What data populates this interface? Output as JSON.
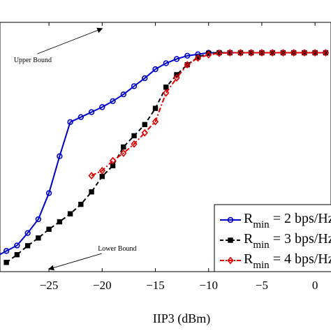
{
  "chart_data": {
    "type": "line",
    "xlabel": "IIP3 (dBm)",
    "ylabel": "",
    "xlim": [
      -29.6,
      1.5
    ],
    "ylim": [
      0,
      1
    ],
    "x_ticks": [
      {
        "value": -25,
        "label": "−25"
      },
      {
        "value": -20,
        "label": "−20"
      },
      {
        "value": -15,
        "label": "−15"
      },
      {
        "value": -10,
        "label": "−10"
      },
      {
        "value": -5,
        "label": "−5"
      },
      {
        "value": 0,
        "label": "0"
      }
    ],
    "grid": false,
    "legend_position": "bottom-right",
    "series": [
      {
        "name": "R_min = 2 bps/Hz",
        "legend_main": "R",
        "legend_sub": "min",
        "legend_rest": " = 2 bps/Hz",
        "color": "#0000cc",
        "line_style": "solid",
        "marker": "circle",
        "x": [
          -30,
          -29,
          -28,
          -27,
          -26,
          -25,
          -24,
          -23,
          -22,
          -21,
          -20,
          -19,
          -18,
          -17,
          -16,
          -15,
          -14,
          -13,
          -12,
          -11,
          -10,
          -9,
          -8,
          -7,
          -6,
          -5,
          -4,
          -3,
          -2,
          -1,
          0,
          1
        ],
        "y": [
          0.06,
          0.083,
          0.105,
          0.155,
          0.21,
          0.315,
          0.463,
          0.6,
          0.62,
          0.64,
          0.66,
          0.684,
          0.711,
          0.744,
          0.776,
          0.812,
          0.836,
          0.853,
          0.866,
          0.872,
          0.878,
          0.878,
          0.878,
          0.878,
          0.878,
          0.878,
          0.878,
          0.878,
          0.878,
          0.878,
          0.878,
          0.878
        ]
      },
      {
        "name": "R_min = 3 bps/Hz",
        "legend_main": "R",
        "legend_sub": "min",
        "legend_rest": " = 3 bps/Hz",
        "color": "#000000",
        "line_style": "dashed",
        "marker": "square",
        "x": [
          -29,
          -28,
          -27,
          -26,
          -25,
          -24,
          -23,
          -22,
          -21,
          -20,
          -19,
          -18,
          -17,
          -16,
          -15,
          -14,
          -13,
          -12,
          -11,
          -10,
          -9,
          -8,
          -7,
          -6,
          -5,
          -4,
          -3,
          -2,
          -1,
          0,
          1
        ],
        "y": [
          0.037,
          0.068,
          0.104,
          0.135,
          0.17,
          0.2,
          0.232,
          0.27,
          0.32,
          0.382,
          0.425,
          0.5,
          0.545,
          0.59,
          0.655,
          0.74,
          0.79,
          0.83,
          0.86,
          0.876,
          0.878,
          0.878,
          0.878,
          0.878,
          0.878,
          0.878,
          0.878,
          0.878,
          0.878,
          0.878,
          0.878
        ]
      },
      {
        "name": "R_min = 4 bps/Hz",
        "legend_main": "R",
        "legend_sub": "min",
        "legend_rest": " = 4 bps/Hz",
        "color": "#e00000",
        "line_style": "dashdot",
        "marker": "diamond",
        "x": [
          -21,
          -20,
          -19,
          -18,
          -17,
          -16,
          -15,
          -14,
          -13,
          -12,
          -11,
          -10,
          -9,
          -8,
          -7,
          -6,
          -5,
          -4,
          -3,
          -2,
          -1,
          0,
          1
        ],
        "y": [
          0.385,
          0.405,
          0.445,
          0.475,
          0.512,
          0.557,
          0.602,
          0.717,
          0.777,
          0.83,
          0.857,
          0.87,
          0.876,
          0.878,
          0.878,
          0.878,
          0.878,
          0.878,
          0.878,
          0.878,
          0.878,
          0.878,
          0.878
        ]
      }
    ],
    "annotations": [
      {
        "text": "Upper Bound",
        "arrow_to": [
          -20,
          0.975
        ],
        "label_at": [
          -28.3,
          0.84
        ]
      },
      {
        "text": "Lower Bound",
        "arrow_to": [
          -25,
          0.01
        ],
        "label_at": [
          -20.4,
          0.084
        ]
      }
    ]
  }
}
